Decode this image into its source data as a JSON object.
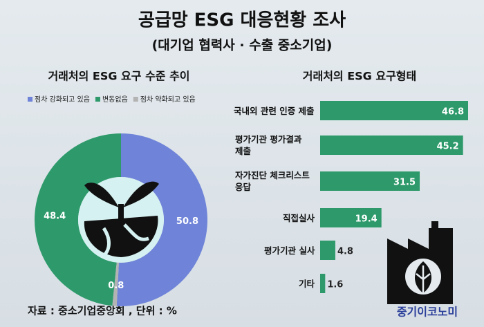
{
  "title": "공급망 ESG 대응현황 조사",
  "subtitle": "(대기업 협력사 · 수출 중소기업)",
  "source": "자료 : 중소기업중앙회 , 단위 : %",
  "brand": "중기이코노미",
  "chart_data": [
    {
      "type": "pie",
      "title": "거래처의 ESG 요구 수준 추이",
      "categories": [
        "점차 강화되고 있음",
        "변동없음",
        "점차 약화되고 있음"
      ],
      "values": [
        50.8,
        48.4,
        0.8
      ],
      "colors": [
        "#6f84d8",
        "#2e9a6b",
        "#b3b3b3"
      ],
      "legend": "top"
    },
    {
      "type": "bar",
      "orientation": "horizontal",
      "title": "거래처의 ESG 요구형태",
      "categories": [
        "국내외 관련 인증 제출",
        "평가기관 평가결과 제출",
        "자가진단 체크리스트 응답",
        "직접실사",
        "평가기관 실사",
        "기타"
      ],
      "values": [
        46.8,
        45.2,
        31.5,
        19.4,
        4.8,
        1.6
      ],
      "color": "#2e9a6b"
    }
  ]
}
